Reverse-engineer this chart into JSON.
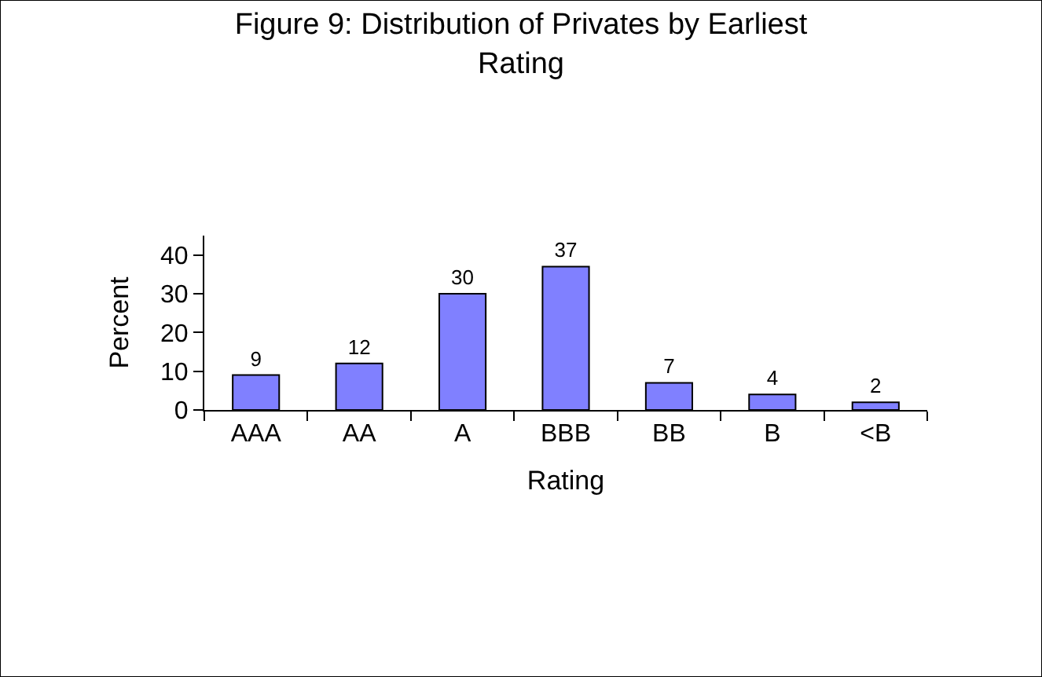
{
  "chart_data": {
    "type": "bar",
    "title": "Figure 9: Distribution of Privates by Earliest Rating",
    "xlabel": "Rating",
    "ylabel": "Percent",
    "categories": [
      "AAA",
      "AA",
      "A",
      "BBB",
      "BB",
      "B",
      "<B"
    ],
    "values": [
      9,
      12,
      30,
      37,
      7,
      4,
      2
    ],
    "color": "#8080ff",
    "ylim": [
      0,
      45
    ],
    "yticks": [
      0,
      10,
      20,
      30,
      40
    ],
    "data_labels": true
  }
}
